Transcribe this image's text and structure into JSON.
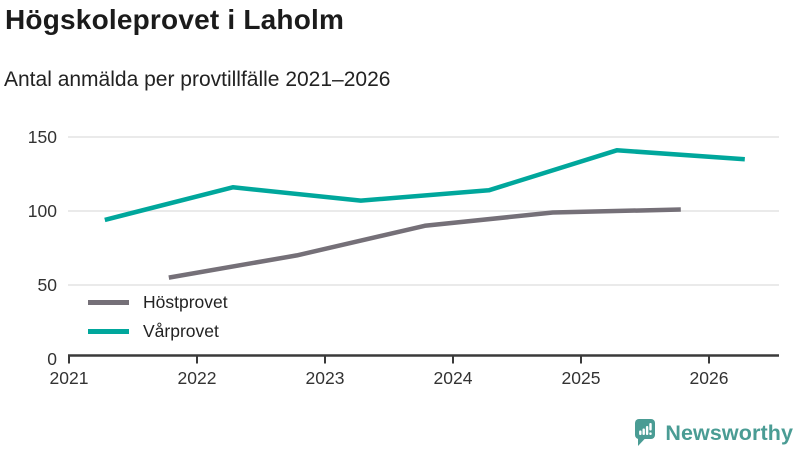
{
  "header": {
    "title": "Högskoleprovet i Laholm",
    "subtitle": "Antal anmälda per provtillfälle 2021–2026"
  },
  "chart_data": {
    "type": "line",
    "title": "Högskoleprovet i Laholm",
    "subtitle": "Antal anmälda per provtillfälle 2021–2026",
    "xlabel": "",
    "ylabel": "",
    "x": {
      "ticks": [
        2021,
        2022,
        2023,
        2024,
        2025,
        2026
      ],
      "range": [
        2021,
        2026.55
      ]
    },
    "y": {
      "ticks": [
        0,
        50,
        100,
        150
      ],
      "range": [
        0,
        150
      ]
    },
    "grid": true,
    "legend_position": "inside-bottom-left",
    "series": [
      {
        "name": "Höstprovet",
        "color": "#757078",
        "points": [
          {
            "x": 2021.78,
            "y": 55
          },
          {
            "x": 2022.78,
            "y": 70
          },
          {
            "x": 2023.78,
            "y": 90
          },
          {
            "x": 2024.78,
            "y": 99
          },
          {
            "x": 2025.78,
            "y": 101
          }
        ]
      },
      {
        "name": "Vårprovet",
        "color": "#00a79c",
        "points": [
          {
            "x": 2021.28,
            "y": 94
          },
          {
            "x": 2022.28,
            "y": 116
          },
          {
            "x": 2023.28,
            "y": 107
          },
          {
            "x": 2024.28,
            "y": 114
          },
          {
            "x": 2025.28,
            "y": 141
          },
          {
            "x": 2026.28,
            "y": 135
          }
        ]
      }
    ],
    "colors": {
      "axis": "#3a3a3a",
      "grid": "#e4e4e4",
      "tick_text": "#333333"
    }
  },
  "branding": {
    "label": "Newsworthy",
    "color": "#4a9c94"
  }
}
